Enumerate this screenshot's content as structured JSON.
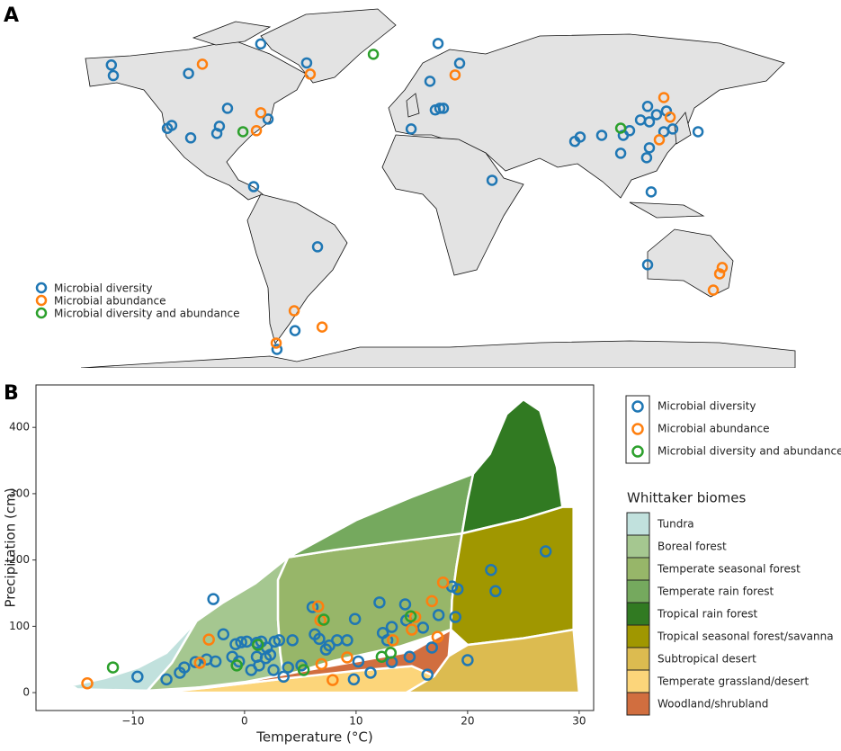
{
  "chart_data": [
    {
      "type": "map",
      "label": "A",
      "xlim": [
        -180,
        180
      ],
      "ylim": [
        -74,
        90
      ],
      "series": [
        {
          "name": "Microbial diversity",
          "color": "#1f77b4",
          "x": [
            -151,
            -150,
            -112,
            -75.5,
            -52.3,
            -122.7,
            -120.5,
            -110.9,
            -97.7,
            -96.4,
            -92.3,
            -71.8,
            -79.1,
            -46.8,
            -58.2,
            -67.3,
            14.1,
            25,
            10,
            12.7,
            15,
            16.8,
            0.5,
            41.4,
            83.2,
            85.9,
            96.8,
            107.7,
            110.9,
            116.4,
            120,
            120.9,
            124.5,
            129.5,
            128.2,
            132.7,
            145.5,
            119.5,
            120.9,
            106.4,
            121.8,
            120
          ],
          "values": [
            69,
            64,
            65,
            79,
            70,
            39,
            40.4,
            34.5,
            36.6,
            40,
            48.5,
            43.4,
            11.4,
            -17.1,
            -56.8,
            -65.7,
            79.2,
            69.8,
            61.3,
            47.7,
            48.5,
            48.5,
            38.7,
            14.4,
            32.8,
            34.9,
            35.7,
            35.7,
            37.9,
            43,
            49.4,
            42.1,
            45.5,
            47.2,
            37.4,
            38.7,
            37.4,
            25.1,
            29.8,
            27.2,
            8.9,
            -25.6
          ]
        },
        {
          "name": "Microbial abundance",
          "color": "#ff7f0e",
          "x": [
            -105,
            -50.5,
            -75.5,
            -77.7,
            22.7,
            128.2,
            131.4,
            125.9,
            157.7,
            156.4,
            153.2,
            -58.6,
            -44.5,
            -67.7
          ],
          "values": [
            69.4,
            64.7,
            46.4,
            37.9,
            64.3,
            53.6,
            44.3,
            33.6,
            -26.9,
            -29.9,
            -37.6,
            -47.4,
            -55.1,
            -62.7
          ]
        },
        {
          "name": "Microbial diversity and abundance",
          "color": "#2ca02c",
          "x": [
            -18.6,
            -84.5,
            106.4
          ],
          "values": [
            74.1,
            37.4,
            39.1
          ]
        }
      ]
    },
    {
      "type": "scatter",
      "label": "B",
      "x_label": "Temperature (°C)",
      "y_label": "Precipitation (cm)",
      "xlim": [
        -18.7,
        31.3
      ],
      "ylim": [
        -27,
        464
      ],
      "xticks": [
        {
          "value": -10,
          "label": "−10"
        },
        0,
        10,
        20,
        30
      ],
      "yticks": [
        0,
        100,
        200,
        300,
        400
      ],
      "series": [
        {
          "name": "Microbial diversity",
          "color": "#1f77b4",
          "x": [
            -2.8,
            -9.6,
            -7.0,
            -5.8,
            -5.4,
            -4.4,
            -3.4,
            -2.6,
            -1.9,
            -1.1,
            -0.3,
            0.2,
            0.6,
            1.1,
            1.3,
            1.5,
            2.0,
            2.3,
            2.7,
            3.1,
            3.5,
            3.9,
            4.3,
            5.1,
            6.1,
            6.3,
            6.7,
            7.3,
            7.6,
            8.3,
            9.2,
            9.9,
            10.2,
            11.3,
            12.1,
            12.4,
            12.8,
            13.2,
            14.4,
            14.5,
            14.8,
            16.0,
            16.8,
            17.4,
            18.6,
            19.1,
            18.9,
            20.0,
            22.1,
            22.5,
            27.0,
            16.4,
            13.2,
            9.8,
            1.9,
            -0.8,
            1.1,
            2.6,
            -0.5
          ],
          "values": [
            141,
            24,
            20,
            30,
            38,
            46,
            50,
            47,
            88,
            54,
            76,
            77,
            34,
            75,
            41,
            77,
            68,
            57,
            77,
            79,
            24,
            38,
            79,
            41,
            129,
            88,
            81,
            65,
            71,
            79,
            79,
            111,
            47,
            30,
            136,
            90,
            79,
            99,
            133,
            109,
            54,
            98,
            68,
            117,
            160,
            156,
            114,
            49,
            185,
            153,
            213,
            27,
            46,
            20,
            52,
            73,
            54,
            34,
            47
          ]
        },
        {
          "name": "Microbial abundance",
          "color": "#ff7f0e",
          "x": [
            -14.1,
            -3.2,
            -4.0,
            6.6,
            6.8,
            7.9,
            9.2,
            13.3,
            15.3,
            16.8,
            17.8,
            17.3,
            15.0,
            6.9
          ],
          "values": [
            14,
            80,
            45,
            130,
            109,
            19,
            53,
            79,
            114,
            138,
            166,
            84,
            95,
            43
          ]
        },
        {
          "name": "Microbial diversity and abundance",
          "color": "#2ca02c",
          "x": [
            -11.8,
            1.2,
            -0.7,
            5.3,
            7.1,
            12.3,
            13.1,
            14.9
          ],
          "values": [
            38,
            72,
            41,
            34,
            110,
            54,
            60,
            115
          ]
        }
      ],
      "legend_title": "Whittaker biomes",
      "areas": [
        {
          "name": "Tundra",
          "color": "#C1E1DD",
          "x": [
            -15.5,
            -12.5,
            -9.5,
            -7,
            -4.3,
            -6.5,
            -8.7,
            -15
          ],
          "values": [
            11,
            22,
            38,
            60,
            108,
            45,
            3,
            5
          ]
        },
        {
          "name": "Boreal forest",
          "color": "#A5C790",
          "x": [
            -8.7,
            -6.5,
            -4.3,
            -2,
            1,
            3.9,
            3,
            3,
            3.2,
            3.5,
            -2
          ],
          "values": [
            3,
            45,
            108,
            135,
            165,
            204,
            170,
            110,
            60,
            25,
            10
          ]
        },
        {
          "name": "Temperate seasonal forest",
          "color": "#97B669",
          "x": [
            3.5,
            3.2,
            3,
            3,
            3.9,
            8,
            14,
            19.5,
            19,
            18.6,
            18.5,
            14,
            8
          ],
          "values": [
            25,
            60,
            110,
            170,
            204,
            215,
            228,
            240,
            190,
            140,
            95,
            70,
            48
          ]
        },
        {
          "name": "Temperate rain forest",
          "color": "#75A95E",
          "x": [
            3.9,
            10,
            15,
            20.5,
            20,
            19.5,
            14,
            8
          ],
          "values": [
            204,
            260,
            295,
            330,
            290,
            240,
            228,
            215
          ]
        },
        {
          "name": "Tropical rain forest",
          "color": "#317A22",
          "x": [
            20.5,
            22,
            23.5,
            25,
            26.5,
            28,
            28.5,
            25,
            22,
            19.5,
            20
          ],
          "values": [
            330,
            360,
            420,
            442,
            425,
            340,
            280,
            262,
            250,
            240,
            290
          ]
        },
        {
          "name": "Tropical seasonal forest/savanna",
          "color": "#A09700",
          "x": [
            19.5,
            22,
            25,
            28.5,
            29.5,
            29.5,
            25,
            20,
            18.5,
            18.6,
            19
          ],
          "values": [
            240,
            250,
            262,
            280,
            280,
            95,
            82,
            72,
            95,
            140,
            190
          ]
        },
        {
          "name": "Subtropical desert",
          "color": "#DCBB50",
          "x": [
            20,
            25,
            29.5,
            30,
            14.5,
            17,
            18.3
          ],
          "values": [
            72,
            82,
            95,
            0,
            0,
            25,
            55
          ]
        },
        {
          "name": "Temperate grassland/desert",
          "color": "#FCD57A",
          "x": [
            -7.5,
            14.5,
            17,
            15,
            10,
            3,
            -3
          ],
          "values": [
            0,
            0,
            25,
            40,
            33,
            20,
            8
          ]
        },
        {
          "name": "Woodland/shrubland",
          "color": "#D16E3F",
          "x": [
            -7.5,
            0,
            5,
            10,
            15,
            18.5,
            18.3,
            17,
            15,
            10,
            3,
            -3
          ],
          "values": [
            1,
            16,
            32,
            47,
            62,
            95,
            55,
            25,
            40,
            33,
            20,
            8
          ]
        }
      ]
    }
  ]
}
